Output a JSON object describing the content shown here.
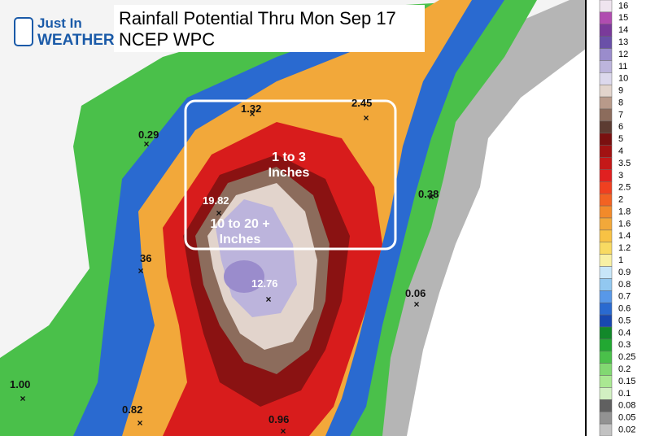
{
  "logo": {
    "line1": "Just In",
    "line2": "WEATHER"
  },
  "title": {
    "line1": "Rainfall Potential Thru Mon Sep 17",
    "line2": "NCEP WPC"
  },
  "annotations": [
    "1 to 3\nInches",
    "10 to 20  +\nInches"
  ],
  "point_labels": [
    "1.32",
    "2.45",
    "0.29",
    "0.38",
    "19.82",
    "12.76",
    "36",
    "0.06",
    "1.00",
    "0.82",
    "0.96"
  ],
  "legend": [
    {
      "label": "16",
      "color": "#efe4ef"
    },
    {
      "label": "15",
      "color": "#b04cb0"
    },
    {
      "label": "14",
      "color": "#7a3a9a"
    },
    {
      "label": "13",
      "color": "#6a50a8"
    },
    {
      "label": "12",
      "color": "#9a8ccc"
    },
    {
      "label": "11",
      "color": "#bcb4dc"
    },
    {
      "label": "10",
      "color": "#dcd8ec"
    },
    {
      "label": "9",
      "color": "#e2d4cc"
    },
    {
      "label": "8",
      "color": "#b89a8a"
    },
    {
      "label": "7",
      "color": "#8c6c5c"
    },
    {
      "label": "6",
      "color": "#5c3c32"
    },
    {
      "label": "5",
      "color": "#7a1010"
    },
    {
      "label": "4",
      "color": "#a21212"
    },
    {
      "label": "3.5",
      "color": "#c41818"
    },
    {
      "label": "3",
      "color": "#e02020"
    },
    {
      "label": "2.5",
      "color": "#f04020"
    },
    {
      "label": "2",
      "color": "#f26222"
    },
    {
      "label": "1.8",
      "color": "#f28a2a"
    },
    {
      "label": "1.6",
      "color": "#f2a83a"
    },
    {
      "label": "1.4",
      "color": "#f8c244"
    },
    {
      "label": "1.2",
      "color": "#f8da62"
    },
    {
      "label": "1",
      "color": "#f8f0a4"
    },
    {
      "label": "0.9",
      "color": "#c8e6f8"
    },
    {
      "label": "0.8",
      "color": "#92c8f0"
    },
    {
      "label": "0.7",
      "color": "#5898e8"
    },
    {
      "label": "0.6",
      "color": "#2a6ad0"
    },
    {
      "label": "0.5",
      "color": "#1848b0"
    },
    {
      "label": "0.4",
      "color": "#12882a"
    },
    {
      "label": "0.3",
      "color": "#22a832"
    },
    {
      "label": "0.25",
      "color": "#4ac04a"
    },
    {
      "label": "0.2",
      "color": "#82d872"
    },
    {
      "label": "0.15",
      "color": "#aae892"
    },
    {
      "label": "0.1",
      "color": "#d2f0c2"
    },
    {
      "label": "0.08",
      "color": "#606060"
    },
    {
      "label": "0.05",
      "color": "#929292"
    },
    {
      "label": "0.02",
      "color": "#c2c2c2"
    }
  ]
}
